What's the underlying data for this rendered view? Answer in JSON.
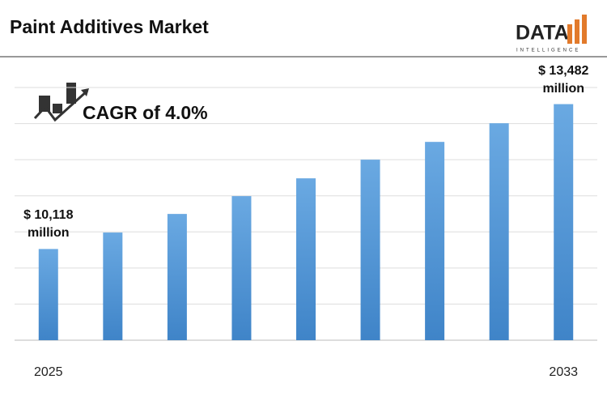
{
  "chart_data": {
    "type": "bar",
    "title": "Paint Additives Market",
    "annotation": "CAGR of 4.0%",
    "logo": {
      "name": "DATA",
      "tagline": "INTELLIGENCE"
    },
    "categories": [
      "2025",
      null,
      null,
      null,
      null,
      null,
      null,
      null,
      "2033"
    ],
    "values": [
      10118,
      10500,
      10932,
      11346,
      11759,
      12192,
      12605,
      13038,
      13482
    ],
    "value_labels": [
      "$ 10,118 million",
      null,
      null,
      null,
      null,
      null,
      null,
      null,
      "$ 13,482 million"
    ],
    "color": "#4a8fd4",
    "ylim": [
      8000,
      14000
    ],
    "grid": true
  }
}
